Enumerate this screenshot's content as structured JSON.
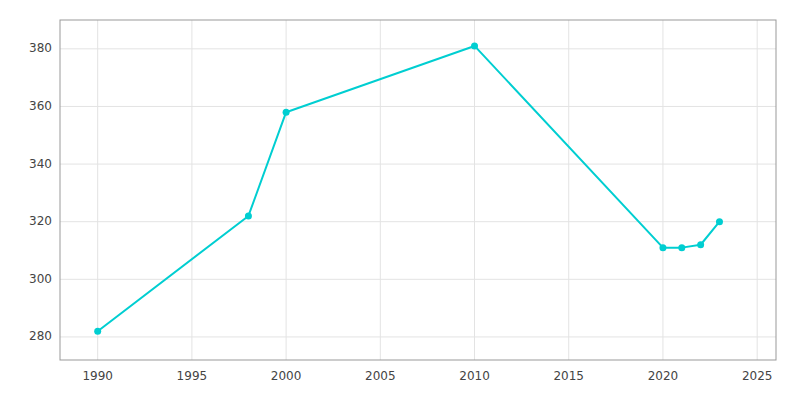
{
  "chart_data": {
    "type": "line",
    "x": [
      1990,
      1998,
      2000,
      2010,
      2020,
      2021,
      2022,
      2023
    ],
    "values": [
      282,
      322,
      358,
      381,
      311,
      311,
      312,
      320
    ],
    "color": "#00CED1",
    "marker": "circle",
    "xlim": [
      1988,
      2026
    ],
    "ylim": [
      272,
      390
    ],
    "xticks": [
      1990,
      1995,
      2000,
      2005,
      2010,
      2015,
      2020,
      2025
    ],
    "yticks": [
      280,
      300,
      320,
      340,
      360,
      380
    ],
    "grid": true
  }
}
